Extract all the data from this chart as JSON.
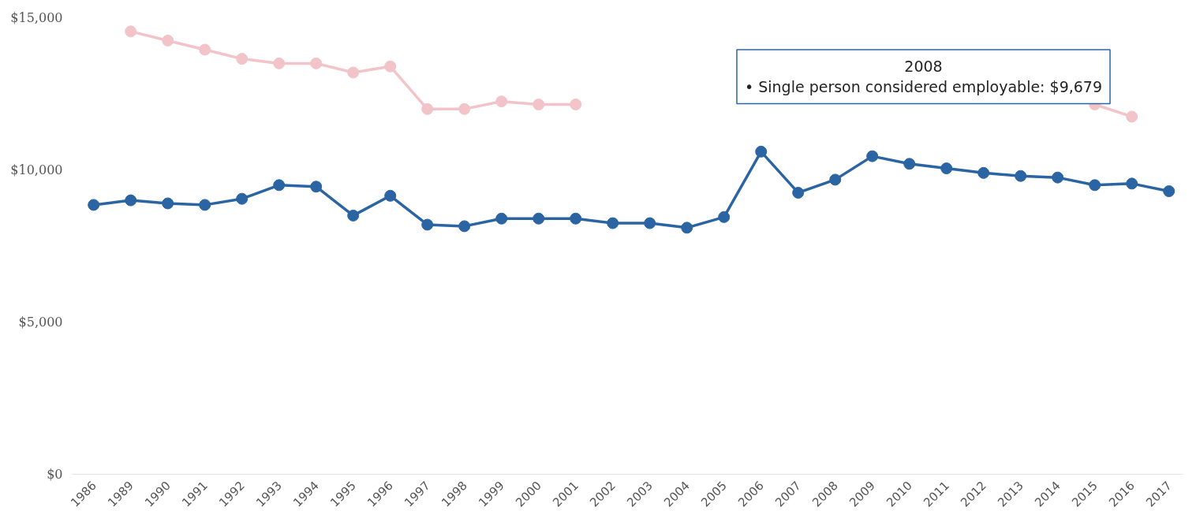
{
  "chart_data": {
    "type": "line",
    "categories": [
      "1986",
      "1989",
      "1990",
      "1991",
      "1992",
      "1993",
      "1994",
      "1995",
      "1996",
      "1997",
      "1998",
      "1999",
      "2000",
      "2001",
      "2002",
      "2003",
      "2004",
      "2005",
      "2006",
      "2007",
      "2008",
      "2009",
      "2010",
      "2011",
      "2012",
      "2013",
      "2014",
      "2015",
      "2016",
      "2017"
    ],
    "series": [
      {
        "color": "#f2c4c9",
        "values": [
          null,
          14550,
          14250,
          13950,
          13650,
          13500,
          13500,
          13200,
          13400,
          12000,
          12000,
          12250,
          12150,
          12150,
          null,
          null,
          null,
          null,
          null,
          null,
          null,
          null,
          null,
          null,
          null,
          null,
          null,
          12150,
          11750,
          null
        ]
      },
      {
        "color": "#2b64a3",
        "values": [
          8850,
          9000,
          8900,
          8850,
          9050,
          9500,
          9450,
          8500,
          9150,
          8200,
          8150,
          8400,
          8400,
          8400,
          8250,
          8250,
          8100,
          8450,
          10600,
          9250,
          9679,
          10450,
          10200,
          10050,
          9900,
          9800,
          9750,
          9500,
          9550,
          9300
        ]
      }
    ],
    "ylim": [
      0,
      15000
    ],
    "yticks": [
      {
        "value": 0,
        "label": "$0"
      },
      {
        "value": 5000,
        "label": "$5,000"
      },
      {
        "value": 10000,
        "label": "$10,000"
      },
      {
        "value": 15000,
        "label": "$15,000"
      }
    ],
    "grid": false,
    "marker": "circle",
    "line_style": "solid",
    "annotations": [
      "2008",
      "• Single person considered employable: $9,679"
    ]
  }
}
